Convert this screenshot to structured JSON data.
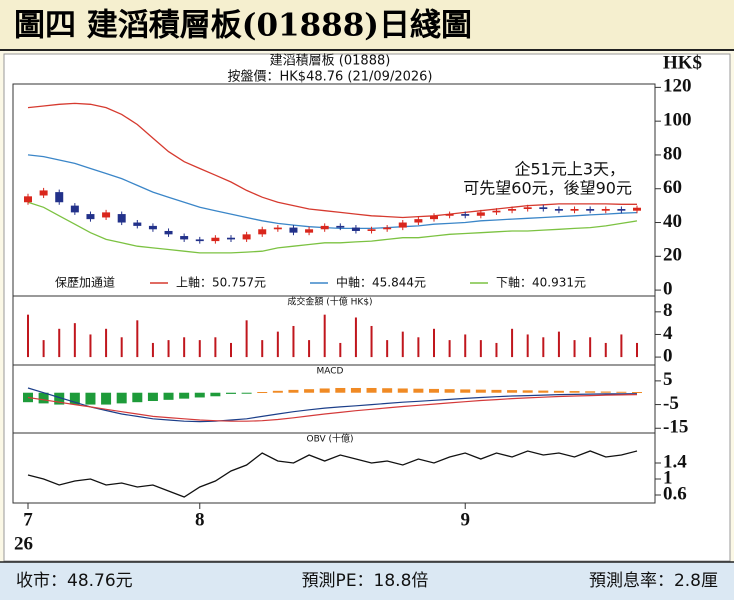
{
  "header": {
    "title": "圖四 建滔積層板(01888)日綫圖"
  },
  "footer": {
    "items": [
      "收市：48.76元",
      "預測PE：18.8倍",
      "預測息率：2.8厘"
    ]
  },
  "chart_data": [
    {
      "type": "candlestick",
      "title": "建滔積層板 (01888)",
      "subtitle": "按盤價：HK$48.76 (21/09/2026)",
      "y_unit_label": "HK$",
      "annotations": [
        "企51元上3天，",
        "可先望60元，後望90元"
      ],
      "legend_title": "保歷加通道",
      "categories": [
        "7",
        null,
        null,
        null,
        null,
        null,
        null,
        null,
        null,
        null,
        null,
        "8",
        null,
        null,
        null,
        null,
        null,
        null,
        null,
        null,
        null,
        null,
        null,
        null,
        null,
        null,
        null,
        null,
        "9",
        null,
        null,
        null,
        null,
        null,
        null,
        null,
        null,
        null,
        null,
        null
      ],
      "year_label": "26",
      "up_color": "#d9261c",
      "down_color": "#22318a",
      "open": [
        52,
        56,
        58,
        50,
        45,
        43,
        45,
        40,
        38,
        35,
        32,
        30,
        29,
        31,
        30,
        33,
        36,
        37,
        34,
        36,
        38,
        37,
        35,
        36,
        37,
        40,
        42,
        44,
        45,
        44,
        46,
        47,
        48,
        49,
        48,
        47,
        48,
        47,
        48,
        47
      ],
      "close": [
        55.5,
        59,
        52,
        46,
        42,
        46,
        40,
        38,
        36,
        33,
        30,
        29,
        31,
        30,
        33,
        36,
        37,
        34,
        36,
        38,
        37,
        35,
        36,
        37,
        40,
        42,
        44,
        45,
        44,
        46,
        47,
        48,
        49,
        48,
        47,
        48,
        47,
        48,
        47,
        48.76
      ],
      "high": [
        57,
        60.5,
        59.5,
        51.5,
        46.5,
        47.5,
        46.5,
        41.5,
        39.5,
        36.5,
        33.5,
        31.5,
        32.5,
        32.5,
        34.5,
        37.5,
        38.5,
        38.5,
        37.5,
        39.5,
        39.5,
        38.5,
        37.5,
        38.5,
        41.5,
        43.5,
        45.5,
        46.5,
        46.5,
        47.5,
        48.5,
        49.5,
        50.5,
        50.5,
        49.5,
        49.5,
        49.5,
        49.5,
        49.5,
        50
      ],
      "low": [
        50.5,
        54.5,
        50.5,
        44.5,
        40.5,
        41.5,
        38.5,
        36.5,
        34.5,
        31.5,
        28.5,
        27.5,
        27.5,
        28.5,
        28.5,
        31.5,
        34.5,
        32.5,
        32.5,
        34.5,
        35.5,
        33.5,
        33.5,
        34.5,
        35.5,
        38.5,
        40.5,
        42.5,
        42.5,
        42.5,
        44.5,
        45.5,
        46.5,
        46.5,
        45.5,
        45.5,
        45.5,
        45.5,
        45.5,
        45.5
      ],
      "series": [
        {
          "name": "上軸：50.757元",
          "color": "#d63a2f",
          "values": [
            108,
            109,
            110,
            110.5,
            110,
            108,
            104,
            98,
            90,
            82,
            76,
            72,
            68,
            64,
            59,
            55,
            52,
            50,
            48,
            47,
            46,
            45,
            44,
            43.5,
            43,
            43.5,
            44,
            45,
            46,
            47,
            48,
            49,
            50,
            50.5,
            51,
            51,
            51,
            51,
            50.8,
            50.757
          ]
        },
        {
          "name": "中軸：45.844元",
          "color": "#3b86c8",
          "values": [
            80,
            79,
            77,
            75,
            72,
            69,
            66,
            62,
            58,
            55,
            52,
            49,
            47,
            45,
            43,
            41,
            39.5,
            38.5,
            37.5,
            37,
            36.5,
            36.5,
            36.5,
            37,
            37.5,
            38,
            39,
            39.5,
            40,
            41,
            41.5,
            42,
            42.5,
            43,
            43.5,
            44,
            44.5,
            45,
            45.5,
            45.844
          ]
        },
        {
          "name": "下軸：40.931元",
          "color": "#7cc242",
          "values": [
            52,
            49,
            44,
            39,
            34,
            30,
            28,
            26,
            25,
            24,
            23,
            22,
            22,
            22,
            22.5,
            23,
            25,
            26,
            27,
            28,
            28,
            28.5,
            29,
            30,
            31,
            31,
            32,
            33,
            33.5,
            34,
            34.5,
            35,
            35,
            35.5,
            36,
            36.5,
            37,
            38,
            39.5,
            40.931
          ]
        }
      ],
      "ylim": [
        -3.5,
        122
      ],
      "yticks": [
        0,
        20,
        40,
        60,
        80,
        100,
        120
      ]
    },
    {
      "type": "bar",
      "title": "成交金額 (十億 HK$)",
      "color": "#c0161d",
      "values": [
        7.5,
        3,
        5,
        6,
        4,
        5,
        3.5,
        6.5,
        2.5,
        3,
        3.5,
        3,
        3.5,
        2.5,
        6.5,
        3,
        4.5,
        5.5,
        3,
        7.5,
        2.5,
        7,
        5.5,
        3,
        4.5,
        3.5,
        5,
        3,
        4,
        3,
        2.5,
        5,
        4,
        3.5,
        4.5,
        3,
        3.5,
        2.5,
        4,
        2.5
      ],
      "ylim": [
        -1.4,
        10.8
      ],
      "yticks": [
        0,
        4,
        8
      ]
    },
    {
      "type": "macd",
      "title": "MACD",
      "pos_color": "#f08a24",
      "neg_color": "#1e9b3a",
      "values": [
        -4,
        -4.5,
        -5,
        -5,
        -5,
        -5,
        -4.5,
        -4,
        -3.5,
        -3,
        -2.5,
        -2,
        -1.5,
        -0.5,
        -0.3,
        0.3,
        0.8,
        1.2,
        1.5,
        1.8,
        2,
        2,
        2,
        1.9,
        1.8,
        1.7,
        1.6,
        1.5,
        1.4,
        1.3,
        1.2,
        1.1,
        1,
        0.9,
        0.8,
        0.7,
        0.6,
        0.5,
        0.4,
        0.3
      ],
      "series": [
        {
          "color": "#1c3f8a",
          "values": [
            2,
            0,
            -2,
            -4,
            -6,
            -7.5,
            -9,
            -10,
            -11,
            -11.5,
            -12,
            -12.2,
            -12,
            -11.5,
            -11,
            -10,
            -9,
            -8,
            -7.2,
            -6.5,
            -6,
            -5.5,
            -5,
            -4.5,
            -4,
            -3.6,
            -3.2,
            -2.8,
            -2.4,
            -2,
            -1.7,
            -1.4,
            -1.2,
            -1,
            -0.8,
            -0.7,
            -0.6,
            -0.5,
            -0.5,
            -0.4
          ]
        },
        {
          "color": "#d43a3a",
          "values": [
            -2,
            -3,
            -4,
            -5,
            -6,
            -7,
            -8,
            -9,
            -10,
            -10.5,
            -11,
            -11.5,
            -11.8,
            -12,
            -12,
            -11.8,
            -11.3,
            -10.6,
            -9.8,
            -9,
            -8.3,
            -7.6,
            -7,
            -6.4,
            -5.8,
            -5.3,
            -4.8,
            -4.3,
            -3.8,
            -3.3,
            -2.9,
            -2.5,
            -2.2,
            -1.9,
            -1.6,
            -1.4,
            -1.2,
            -1,
            -0.9,
            -0.8
          ]
        }
      ],
      "ylim": [
        -17,
        11.7
      ],
      "yticks": [
        -15,
        -5,
        5
      ]
    },
    {
      "type": "line",
      "title": "OBV (十億)",
      "color": "#111111",
      "values": [
        1.1,
        1.0,
        0.85,
        0.95,
        1.0,
        0.85,
        0.9,
        0.8,
        0.85,
        0.7,
        0.55,
        0.8,
        0.95,
        1.2,
        1.35,
        1.65,
        1.45,
        1.4,
        1.6,
        1.45,
        1.6,
        1.5,
        1.4,
        1.45,
        1.35,
        1.5,
        1.4,
        1.55,
        1.65,
        1.5,
        1.65,
        1.55,
        1.7,
        1.6,
        1.65,
        1.55,
        1.7,
        1.55,
        1.6,
        1.7
      ],
      "ylim": [
        0.4,
        2.15
      ],
      "yticks": [
        0.6,
        1.0,
        1.4
      ]
    }
  ]
}
